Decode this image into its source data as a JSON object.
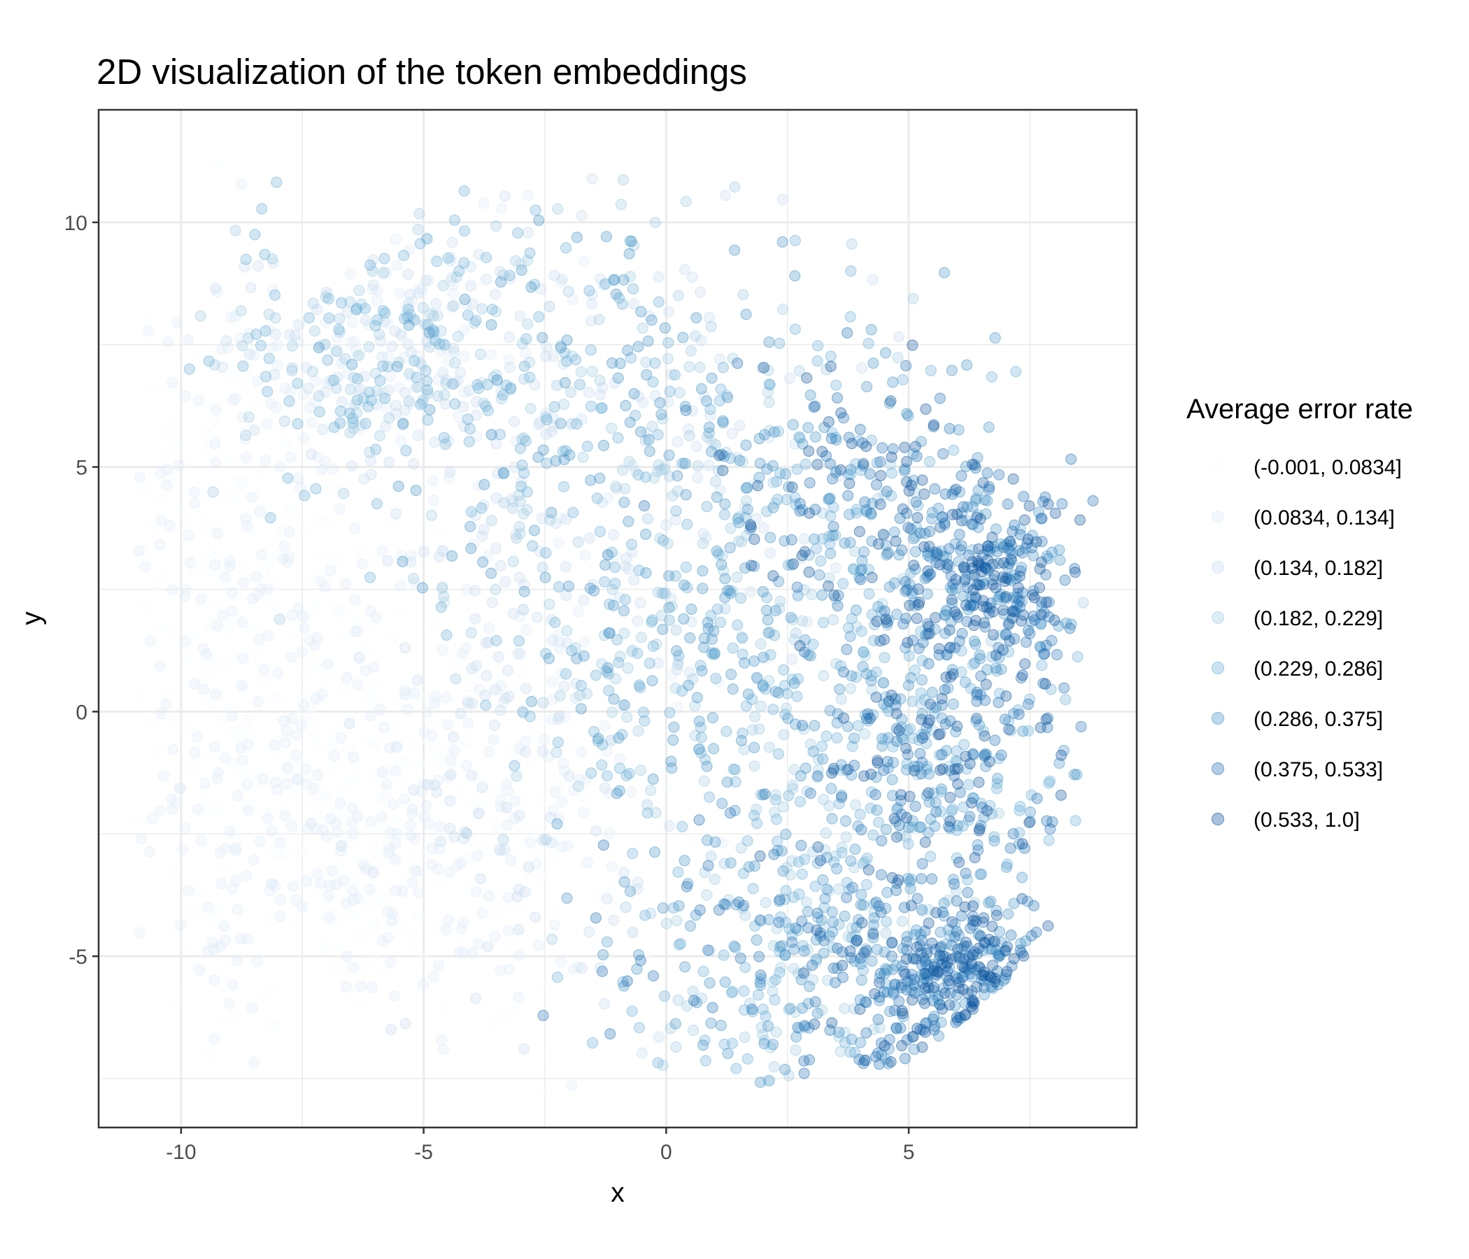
{
  "chart_data": {
    "type": "scatter",
    "title": "2D visualization of the token embeddings",
    "xlabel": "x",
    "ylabel": "y",
    "xlim": [
      -11.7,
      9.7
    ],
    "ylim": [
      -8.5,
      12.3
    ],
    "x_ticks": [
      -10,
      -5,
      0,
      5
    ],
    "y_ticks": [
      -5,
      0,
      5,
      10
    ],
    "x_tick_labels": [
      "-10",
      "-5",
      "0",
      "5"
    ],
    "y_tick_labels": [
      "-5",
      "0",
      "5",
      "10"
    ],
    "grid": true,
    "legend_position": "right",
    "marker": "circle",
    "point_alpha": 0.3,
    "legend": {
      "title": "Average error rate",
      "entries": [
        {
          "label": "(-0.001, 0.0834]",
          "color": "#f7fbff"
        },
        {
          "label": "(0.0834, 0.134]",
          "color": "#deebf7"
        },
        {
          "label": "(0.134, 0.182]",
          "color": "#c6dbef"
        },
        {
          "label": "(0.182, 0.229]",
          "color": "#9ecae1"
        },
        {
          "label": "(0.229, 0.286]",
          "color": "#6baed6"
        },
        {
          "label": "(0.286, 0.375]",
          "color": "#4292c6"
        },
        {
          "label": "(0.375, 0.533]",
          "color": "#2171b5"
        },
        {
          "label": "(0.533, 1.0]",
          "color": "#08519c"
        }
      ]
    },
    "clusters": [
      {
        "x": -5.7,
        "y": 7.4,
        "sx": 1.8,
        "sy": 1.4,
        "n": 420,
        "bin": [
          1,
          4
        ]
      },
      {
        "x": -8.8,
        "y": 3.0,
        "sx": 1.6,
        "sy": 3.2,
        "n": 380,
        "bin": [
          0,
          1
        ]
      },
      {
        "x": -7.0,
        "y": -2.8,
        "sx": 2.2,
        "sy": 2.2,
        "n": 420,
        "bin": [
          0,
          1
        ]
      },
      {
        "x": -3.2,
        "y": -1.2,
        "sx": 2.0,
        "sy": 3.0,
        "n": 320,
        "bin": [
          0,
          2
        ]
      },
      {
        "x": -1.0,
        "y": 5.5,
        "sx": 2.4,
        "sy": 2.6,
        "n": 460,
        "bin": [
          2,
          5
        ]
      },
      {
        "x": 1.8,
        "y": 0.5,
        "sx": 2.4,
        "sy": 2.4,
        "n": 420,
        "bin": [
          3,
          5
        ]
      },
      {
        "x": 2.8,
        "y": -5.0,
        "sx": 2.0,
        "sy": 1.4,
        "n": 340,
        "bin": [
          3,
          6
        ]
      },
      {
        "x": 4.0,
        "y": 4.2,
        "sx": 1.6,
        "sy": 1.6,
        "n": 260,
        "bin": [
          4,
          7
        ]
      },
      {
        "x": 6.6,
        "y": 2.6,
        "sx": 0.9,
        "sy": 1.1,
        "n": 300,
        "bin": [
          5,
          7
        ]
      },
      {
        "x": 6.0,
        "y": -5.6,
        "sx": 1.1,
        "sy": 0.9,
        "n": 380,
        "bin": [
          5,
          7
        ]
      },
      {
        "x": 5.6,
        "y": -1.2,
        "sx": 1.5,
        "sy": 1.6,
        "n": 300,
        "bin": [
          4,
          7
        ]
      }
    ]
  }
}
